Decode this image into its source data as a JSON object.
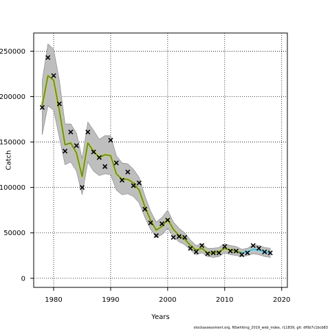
{
  "chart_data": {
    "type": "line",
    "title": "",
    "xlabel": "Years",
    "ylabel": "Catch",
    "footer": "stockassessment.org, NSwhiting_2019_web_index, r11839, git: df0b7c1bcb83",
    "xlim": [
      1976.5,
      2021.0
    ],
    "ylim": [
      -10000,
      270000
    ],
    "xticks": [
      1980,
      1990,
      2000,
      2010,
      2020
    ],
    "yticks": [
      0,
      50000,
      100000,
      150000,
      200000,
      250000
    ],
    "grid": true,
    "grid_style": "dotted",
    "colors": {
      "band": "#bebebe",
      "fit_line": "#6e8b3d",
      "late_fit_line": "#56b4c8",
      "observed": "#000000"
    },
    "x": [
      1978,
      1979,
      1980,
      1981,
      1982,
      1983,
      1984,
      1985,
      1986,
      1987,
      1988,
      1989,
      1990,
      1991,
      1992,
      1993,
      1994,
      1995,
      1996,
      1997,
      1998,
      1999,
      2000,
      2001,
      2002,
      2003,
      2004,
      2005,
      2006,
      2007,
      2008,
      2009,
      2010,
      2011,
      2012,
      2013,
      2014,
      2015,
      2016,
      2017,
      2018
    ],
    "series": [
      {
        "type": "line",
        "values": [
          190000,
          223000,
          218000,
          185000,
          147000,
          149000,
          138000,
          112000,
          149000,
          140000,
          133000,
          136000,
          135000,
          115000,
          109000,
          109000,
          105000,
          97000,
          79000,
          64000,
          53000,
          57000,
          65000,
          54000,
          47000,
          43000,
          36000,
          31000,
          33000,
          28000,
          28000,
          29000,
          33000,
          31000,
          30000,
          28000,
          29000,
          32000,
          31000,
          29000,
          28000
        ],
        "upper": [
          218000,
          258000,
          252000,
          218000,
          170000,
          170000,
          160000,
          132000,
          172000,
          163000,
          153000,
          157000,
          157000,
          135000,
          127000,
          126000,
          120000,
          111000,
          91000,
          74000,
          62000,
          67000,
          75000,
          62000,
          55000,
          50000,
          42000,
          36000,
          38000,
          33000,
          33000,
          34000,
          38000,
          36000,
          35000,
          32000,
          33000,
          37000,
          36000,
          34000,
          33000
        ],
        "lower": [
          158000,
          190000,
          185000,
          155000,
          125000,
          128000,
          118000,
          92000,
          128000,
          118000,
          113000,
          115000,
          114000,
          97000,
          92000,
          93000,
          90000,
          83000,
          67000,
          54000,
          45000,
          48000,
          55000,
          46000,
          40000,
          37000,
          31000,
          26000,
          28000,
          24000,
          23000,
          24000,
          28000,
          26000,
          25000,
          24000,
          25000,
          27000,
          26000,
          24000,
          23000
        ]
      },
      {
        "type": "scatter",
        "values": [
          188000,
          243000,
          223000,
          192000,
          140000,
          161000,
          146000,
          100000,
          161000,
          139000,
          133000,
          123000,
          152000,
          127000,
          108000,
          117000,
          102000,
          105000,
          76000,
          61000,
          47000,
          60000,
          64000,
          45000,
          46000,
          45000,
          33000,
          29000,
          36000,
          27000,
          28000,
          28000,
          35000,
          30000,
          30000,
          26000,
          28000,
          36000,
          33000,
          29000,
          28000
        ]
      }
    ]
  }
}
